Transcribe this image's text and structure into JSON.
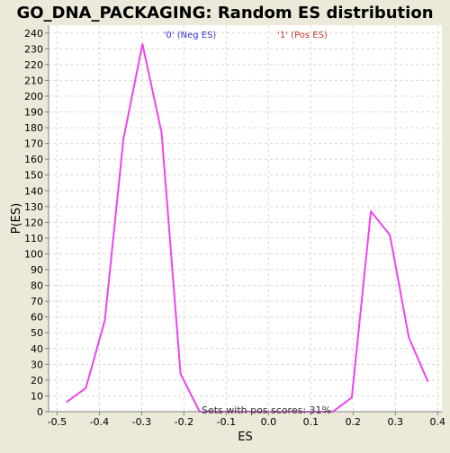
{
  "chart_data": {
    "type": "line",
    "title": "GO_DNA_PACKAGING: Random ES distribution",
    "xlabel": "ES",
    "ylabel": "P(ES)",
    "xlim": [
      -0.52,
      0.41
    ],
    "ylim": [
      0,
      245
    ],
    "xticks": [
      -0.5,
      -0.4,
      -0.3,
      -0.2,
      -0.1,
      0.0,
      0.1,
      0.2,
      0.3,
      0.4
    ],
    "xtick_labels": [
      "-0.5",
      "-0.4",
      "-0.3",
      "-0.2",
      "-0.1",
      "0.0",
      "0.1",
      "0.2",
      "0.3",
      "0.4"
    ],
    "yticks": [
      0,
      10,
      20,
      30,
      40,
      50,
      60,
      70,
      80,
      90,
      100,
      110,
      120,
      130,
      140,
      150,
      160,
      170,
      180,
      190,
      200,
      210,
      220,
      230,
      240
    ],
    "grid": true,
    "legend": [
      {
        "label": "'0' (Neg ES)",
        "color": "#3333cc",
        "placement": "top-left"
      },
      {
        "label": "'1' (Pos ES)",
        "color": "#cc3333",
        "placement": "top-right"
      }
    ],
    "annotation": "Sets with pos scores: 31%",
    "series": [
      {
        "color": "#ee44ee",
        "x": [
          -0.478,
          -0.432,
          -0.387,
          -0.343,
          -0.298,
          -0.253,
          -0.208,
          -0.163,
          -0.118,
          -0.073,
          -0.028,
          0.017,
          0.062,
          0.107,
          0.152,
          0.197,
          0.242,
          0.287,
          0.332,
          0.377
        ],
        "y": [
          6,
          15,
          58,
          173,
          233,
          177,
          24,
          0,
          0,
          0,
          0,
          0,
          0,
          0,
          0,
          9,
          127,
          112,
          47,
          19
        ]
      }
    ]
  },
  "colors": {
    "background": "#ece9d8",
    "plot_background": "#ffffff",
    "grid": "#d8d8d8",
    "axis": "#808080",
    "line": "#ee44ee"
  }
}
